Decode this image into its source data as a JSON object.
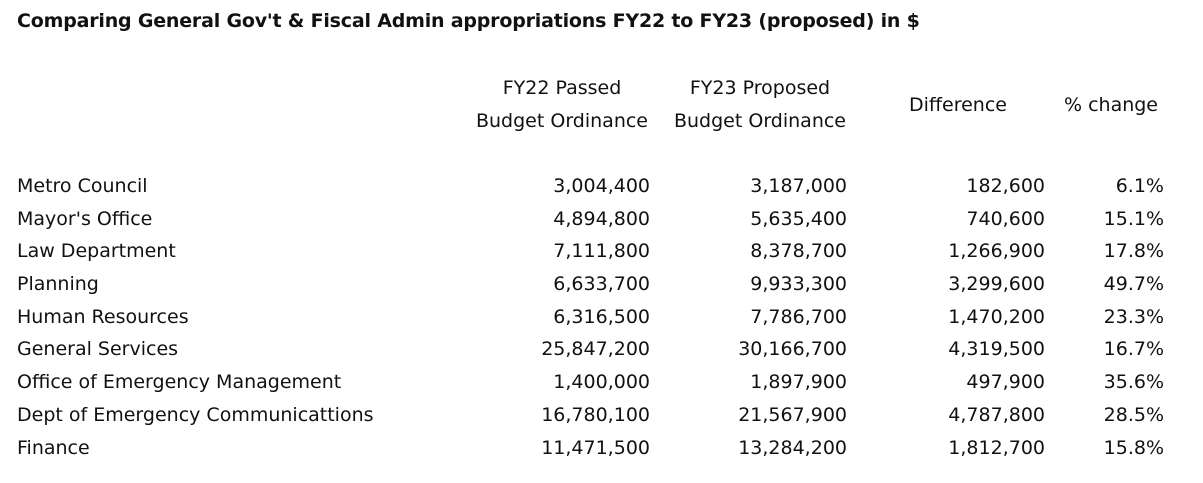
{
  "title": "Comparing General Gov't & Fiscal Admin appropriations FY22 to FY23 (proposed) in $",
  "headers": {
    "fy22": [
      "FY22 Passed",
      "Budget Ordinance"
    ],
    "fy23": [
      "FY23 Proposed",
      "Budget Ordinance"
    ],
    "difference": "Difference",
    "pct_change": "% change"
  },
  "rows": [
    {
      "name": "Metro Council",
      "fy22": "3,004,400",
      "fy23": "3,187,000",
      "difference": "182,600",
      "pct": "6.1%"
    },
    {
      "name": "Mayor's Office",
      "fy22": "4,894,800",
      "fy23": "5,635,400",
      "difference": "740,600",
      "pct": "15.1%"
    },
    {
      "name": "Law Department",
      "fy22": "7,111,800",
      "fy23": "8,378,700",
      "difference": "1,266,900",
      "pct": "17.8%"
    },
    {
      "name": "Planning",
      "fy22": "6,633,700",
      "fy23": "9,933,300",
      "difference": "3,299,600",
      "pct": "49.7%"
    },
    {
      "name": "Human Resources",
      "fy22": "6,316,500",
      "fy23": "7,786,700",
      "difference": "1,470,200",
      "pct": "23.3%"
    },
    {
      "name": "General Services",
      "fy22": "25,847,200",
      "fy23": "30,166,700",
      "difference": "4,319,500",
      "pct": "16.7%"
    },
    {
      "name": "Office of Emergency Management",
      "fy22": "1,400,000",
      "fy23": "1,897,900",
      "difference": "497,900",
      "pct": "35.6%"
    },
    {
      "name": "Dept of Emergency Communicattions",
      "fy22": "16,780,100",
      "fy23": "21,567,900",
      "difference": "4,787,800",
      "pct": "28.5%"
    },
    {
      "name": "Finance",
      "fy22": "11,471,500",
      "fy23": "13,284,200",
      "difference": "1,812,700",
      "pct": "15.8%"
    }
  ]
}
